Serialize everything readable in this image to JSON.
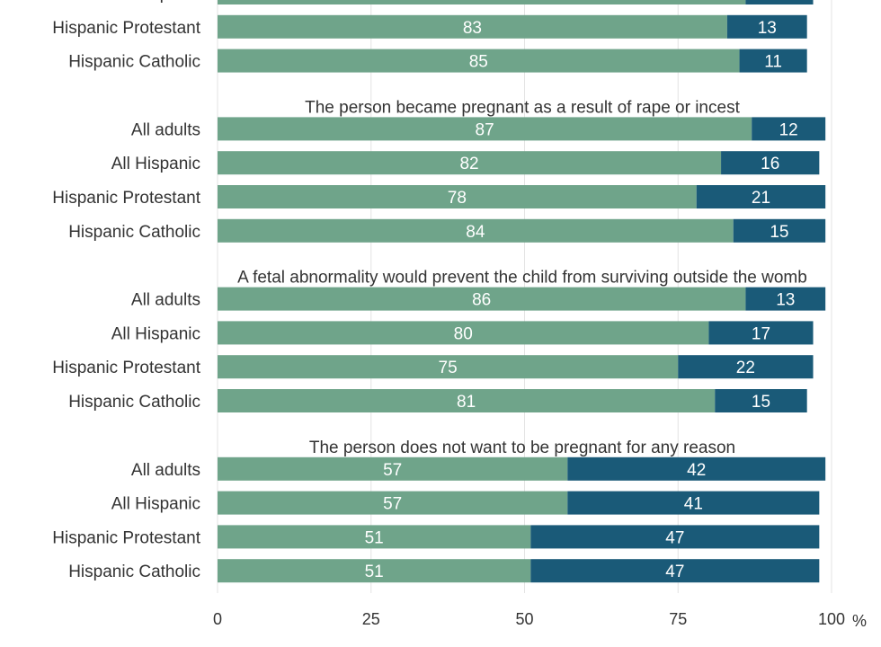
{
  "chart_data": {
    "type": "bar",
    "orientation": "horizontal",
    "stacked": true,
    "xlim": [
      0,
      100
    ],
    "x_ticks": [
      "0",
      "25",
      "50",
      "75",
      "100"
    ],
    "x_unit": "%",
    "grid": true,
    "colors": {
      "series_1": "#6fa48a",
      "series_2": "#1a5a78",
      "text": "#333333"
    },
    "groups": [
      {
        "title": "",
        "rows": [
          {
            "label": "All Hispanic",
            "values": [
              86,
              11
            ]
          },
          {
            "label": "Hispanic Protestant",
            "values": [
              83,
              13
            ]
          },
          {
            "label": "Hispanic Catholic",
            "values": [
              85,
              11
            ]
          }
        ]
      },
      {
        "title": "The person became pregnant as a result of rape or incest",
        "rows": [
          {
            "label": "All adults",
            "values": [
              87,
              12
            ]
          },
          {
            "label": "All Hispanic",
            "values": [
              82,
              16
            ]
          },
          {
            "label": "Hispanic Protestant",
            "values": [
              78,
              21
            ]
          },
          {
            "label": "Hispanic Catholic",
            "values": [
              84,
              15
            ]
          }
        ]
      },
      {
        "title": "A fetal abnormality would prevent the child from surviving outside the womb",
        "rows": [
          {
            "label": "All adults",
            "values": [
              86,
              13
            ]
          },
          {
            "label": "All Hispanic",
            "values": [
              80,
              17
            ]
          },
          {
            "label": "Hispanic Protestant",
            "values": [
              75,
              22
            ]
          },
          {
            "label": "Hispanic Catholic",
            "values": [
              81,
              15
            ]
          }
        ]
      },
      {
        "title": "The person does not want to be pregnant for any reason",
        "rows": [
          {
            "label": "All adults",
            "values": [
              57,
              42
            ]
          },
          {
            "label": "All Hispanic",
            "values": [
              57,
              41
            ]
          },
          {
            "label": "Hispanic Protestant",
            "values": [
              51,
              47
            ]
          },
          {
            "label": "Hispanic Catholic",
            "values": [
              51,
              47
            ]
          }
        ]
      }
    ]
  }
}
